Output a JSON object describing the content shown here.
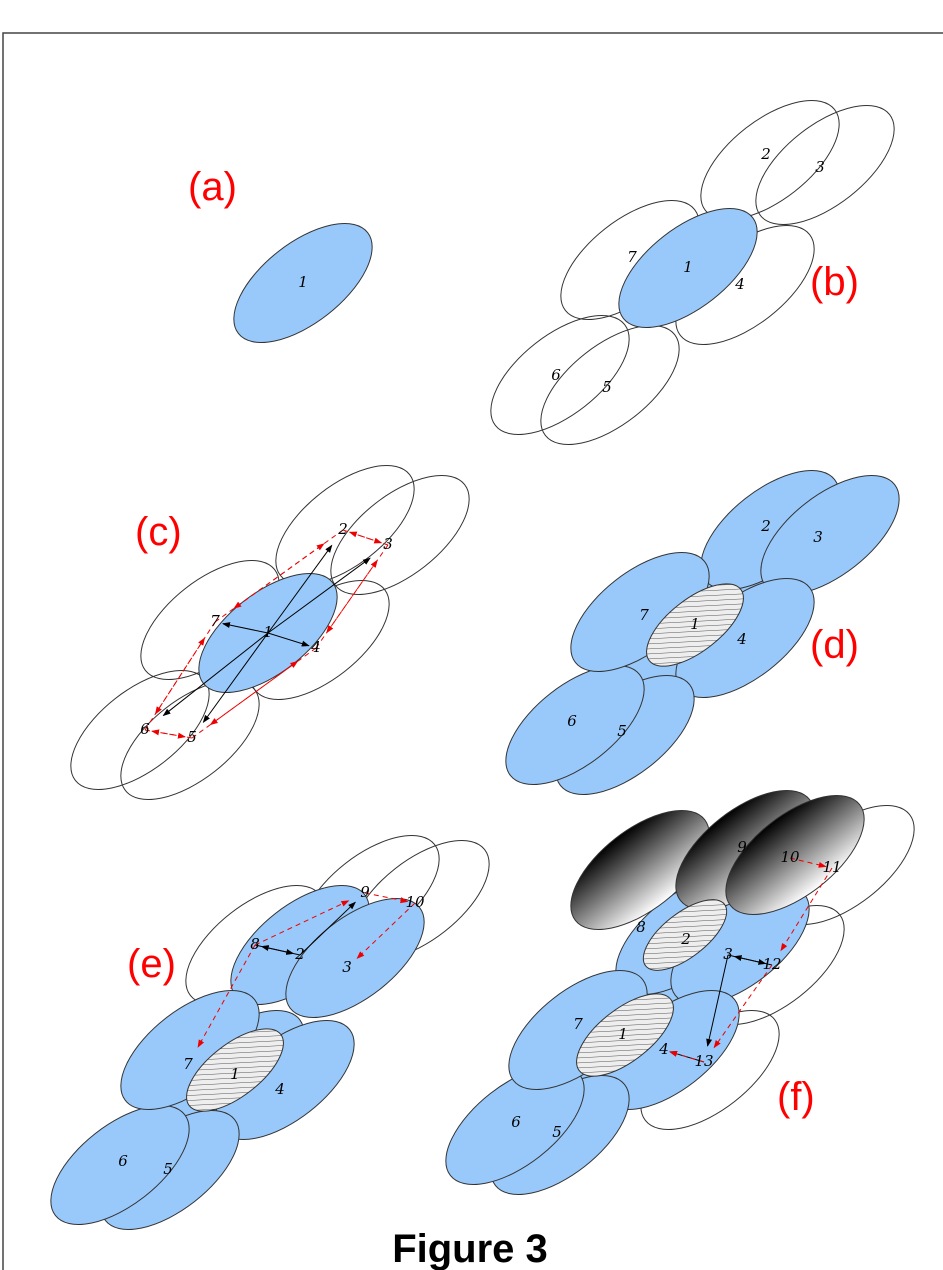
{
  "panels": [
    {
      "label": "(a)",
      "nodes": [
        "1"
      ]
    },
    {
      "label": "(b)",
      "nodes": [
        "1",
        "2",
        "3",
        "4",
        "5",
        "6",
        "7"
      ]
    },
    {
      "label": "(c)",
      "nodes": [
        "1",
        "2",
        "3",
        "4",
        "5",
        "6",
        "7"
      ]
    },
    {
      "label": "(d)",
      "nodes": [
        "1",
        "2",
        "3",
        "4",
        "5",
        "6",
        "7"
      ]
    },
    {
      "label": "(e)",
      "nodes": [
        "1",
        "2",
        "3",
        "4",
        "5",
        "6",
        "7",
        "8",
        "9",
        "10"
      ]
    },
    {
      "label": "(f)",
      "nodes": [
        "1",
        "2",
        "3",
        "4",
        "5",
        "6",
        "7",
        "8",
        "9",
        "10",
        "11",
        "12",
        "13"
      ]
    }
  ],
  "caption": "Figure 3"
}
